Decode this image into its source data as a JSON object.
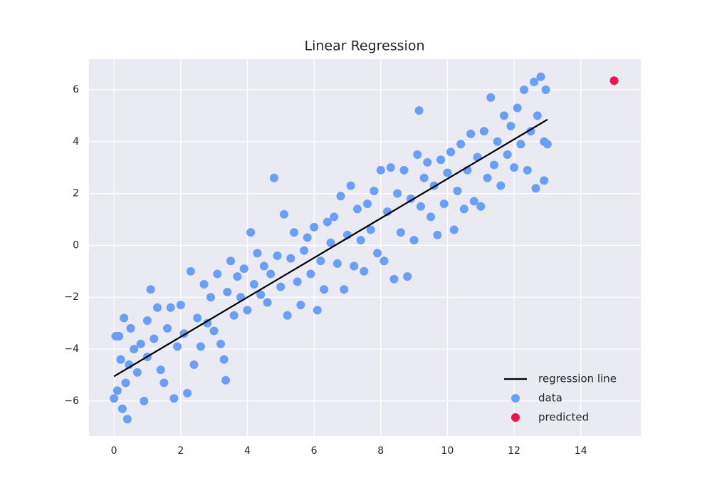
{
  "chart_data": {
    "type": "scatter",
    "title": "Linear Regression",
    "xlim": [
      -0.75,
      15.8
    ],
    "ylim": [
      -7.35,
      7.18
    ],
    "xticks": [
      0,
      2,
      4,
      6,
      8,
      10,
      12,
      14
    ],
    "yticks": [
      {
        "value": -6,
        "label": "−6"
      },
      {
        "value": -4,
        "label": "−4"
      },
      {
        "value": -2,
        "label": "−2"
      },
      0,
      2,
      4,
      6
    ],
    "grid": true,
    "legend": "lower right",
    "series": [
      {
        "name": "regression line",
        "type": "line",
        "color": "#000000",
        "x": [
          0,
          13
        ],
        "values": [
          -5.05,
          4.85
        ]
      },
      {
        "name": "data",
        "type": "scatter",
        "color": "#6a9ff7",
        "x": [
          0,
          0.05,
          0.1,
          0.15,
          0.2,
          0.25,
          0.3,
          0.35,
          0.4,
          0.45,
          0.5,
          0.6,
          0.7,
          0.8,
          0.9,
          1.0,
          1.0,
          1.1,
          1.2,
          1.3,
          1.4,
          1.5,
          1.6,
          1.7,
          1.8,
          1.9,
          2.0,
          2.1,
          2.2,
          2.3,
          2.4,
          2.5,
          2.6,
          2.7,
          2.8,
          2.9,
          3.0,
          3.1,
          3.2,
          3.3,
          3.35,
          3.4,
          3.5,
          3.6,
          3.7,
          3.8,
          3.9,
          4.0,
          4.1,
          4.2,
          4.3,
          4.4,
          4.5,
          4.6,
          4.7,
          4.8,
          4.9,
          5.0,
          5.1,
          5.2,
          5.3,
          5.4,
          5.5,
          5.6,
          5.7,
          5.8,
          5.9,
          6.0,
          6.1,
          6.2,
          6.3,
          6.4,
          6.5,
          6.6,
          6.7,
          6.8,
          6.9,
          7.0,
          7.1,
          7.2,
          7.3,
          7.4,
          7.5,
          7.6,
          7.7,
          7.8,
          7.9,
          8.0,
          8.1,
          8.2,
          8.3,
          8.4,
          8.5,
          8.6,
          8.7,
          8.8,
          8.9,
          9.0,
          9.1,
          9.15,
          9.2,
          9.3,
          9.4,
          9.5,
          9.6,
          9.7,
          9.8,
          9.9,
          10.0,
          10.1,
          10.2,
          10.3,
          10.4,
          10.5,
          10.6,
          10.7,
          10.8,
          10.9,
          11.0,
          11.1,
          11.2,
          11.3,
          11.4,
          11.5,
          11.6,
          11.7,
          11.8,
          11.9,
          12.0,
          12.1,
          12.2,
          12.3,
          12.4,
          12.5,
          12.6,
          12.65,
          12.7,
          12.8,
          12.9,
          12.9,
          13.0,
          12.95
        ],
        "values": [
          -5.9,
          -3.5,
          -5.6,
          -3.5,
          -4.4,
          -6.3,
          -2.8,
          -5.3,
          -6.7,
          -4.6,
          -3.2,
          -4.0,
          -4.9,
          -3.8,
          -6.0,
          -2.9,
          -4.3,
          -1.7,
          -3.6,
          -2.4,
          -4.8,
          -5.3,
          -3.2,
          -2.4,
          -5.9,
          -3.9,
          -2.3,
          -3.4,
          -5.7,
          -1.0,
          -4.6,
          -2.8,
          -3.9,
          -1.5,
          -3.0,
          -2.0,
          -3.3,
          -1.1,
          -3.8,
          -4.4,
          -5.2,
          -1.8,
          -0.6,
          -2.7,
          -1.2,
          -2.0,
          -0.9,
          -2.5,
          0.5,
          -1.5,
          -0.3,
          -1.9,
          -0.8,
          -2.2,
          -1.1,
          2.6,
          -0.4,
          -1.6,
          1.2,
          -2.7,
          -0.5,
          0.5,
          -1.4,
          -2.3,
          -0.2,
          0.3,
          -1.1,
          0.7,
          -2.5,
          -0.6,
          -1.7,
          0.9,
          0.1,
          1.1,
          -0.7,
          1.9,
          -1.7,
          0.4,
          2.3,
          -0.8,
          1.4,
          0.2,
          -1.0,
          1.6,
          0.6,
          2.1,
          -0.3,
          2.9,
          -0.6,
          1.3,
          3.0,
          -1.3,
          2.0,
          0.5,
          2.9,
          -1.2,
          1.8,
          0.2,
          3.5,
          5.2,
          1.5,
          2.6,
          3.2,
          1.1,
          2.3,
          0.4,
          3.3,
          1.6,
          2.8,
          3.6,
          0.6,
          2.1,
          3.9,
          1.4,
          2.9,
          4.3,
          1.7,
          3.4,
          1.5,
          4.4,
          2.6,
          5.7,
          3.1,
          4.0,
          2.3,
          5.0,
          3.5,
          4.6,
          3.0,
          5.3,
          3.9,
          6.0,
          2.9,
          4.4,
          6.3,
          2.2,
          5.0,
          6.5,
          2.5,
          4.0,
          3.9,
          6.0
        ]
      },
      {
        "name": "predicted",
        "type": "scatter",
        "color": "#f0134d",
        "x": [
          15
        ],
        "values": [
          6.35
        ]
      }
    ]
  }
}
